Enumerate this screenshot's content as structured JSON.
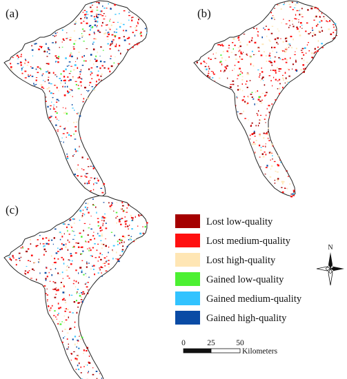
{
  "panels": [
    {
      "label": "(a)"
    },
    {
      "label": "(b)"
    },
    {
      "label": "(c)"
    }
  ],
  "legend": [
    {
      "label": "Lost low-quality",
      "color": "#a50000"
    },
    {
      "label": "Lost medium-quality",
      "color": "#ff1010"
    },
    {
      "label": "Lost high-quality",
      "color": "#ffe6b4"
    },
    {
      "label": "Gained low-quality",
      "color": "#4cf032"
    },
    {
      "label": "Gained medium-quality",
      "color": "#32c3ff"
    },
    {
      "label": "Gained high-quality",
      "color": "#0a4ba5"
    }
  ],
  "north_arrow": {
    "label": "N"
  },
  "scale_bar": {
    "ticks": [
      "0",
      "25",
      "50"
    ],
    "unit": "Kilometers"
  }
}
